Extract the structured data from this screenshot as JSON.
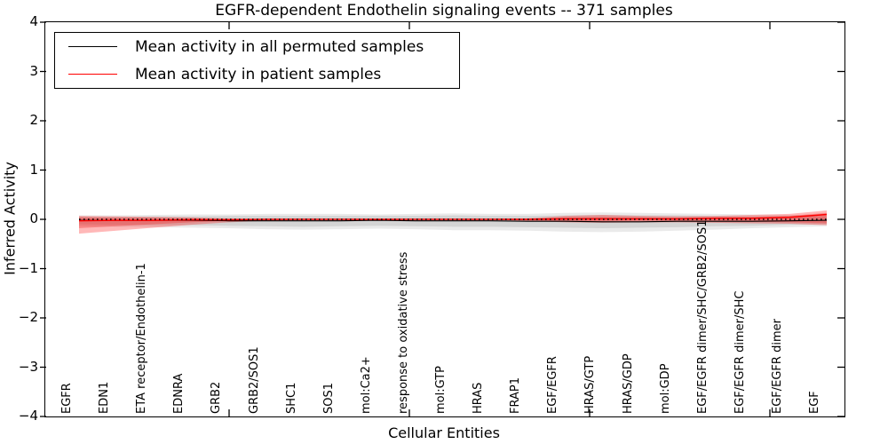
{
  "title": "EGFR-dependent Endothelin signaling events -- 371 samples",
  "xlabel": "Cellular Entities",
  "ylabel": "Inferred Activity",
  "legend": [
    {
      "label": "Mean activity in all permuted samples",
      "color": "#000000"
    },
    {
      "label": "Mean activity in patient samples",
      "color": "#ff0000"
    }
  ],
  "chart_data": {
    "type": "line",
    "title": "EGFR-dependent Endothelin signaling events -- 371 samples",
    "xlabel": "Cellular Entities",
    "ylabel": "Inferred Activity",
    "ylim": [
      -4,
      4
    ],
    "yticks": [
      4,
      3,
      2,
      1,
      0,
      -1,
      -2,
      -3,
      -4
    ],
    "grid": false,
    "legend_position": "upper-left",
    "categories": [
      "EGFR",
      "EDN1",
      "ETA receptor/Endothelin-1",
      "EDNRA",
      "GRB2",
      "GRB2/SOS1",
      "SHC1",
      "SOS1",
      "mol:Ca2+",
      "response to oxidative stress",
      "mol:GTP",
      "HRAS",
      "FRAP1",
      "EGF/EGFR",
      "HRAS/GTP",
      "HRAS/GDP",
      "mol:GDP",
      "EGF/EGFR dimer/SHC/GRB2/SOS1",
      "EGF/EGFR dimer/SHC",
      "EGF/EGFR dimer",
      "EGF"
    ],
    "series": [
      {
        "name": "Mean activity in all permuted samples",
        "color": "#000000",
        "style": "solid",
        "width": 1.1,
        "values": [
          -0.02,
          -0.02,
          -0.02,
          -0.02,
          -0.03,
          -0.03,
          -0.03,
          -0.03,
          -0.02,
          -0.03,
          -0.03,
          -0.03,
          -0.04,
          -0.04,
          -0.05,
          -0.05,
          -0.04,
          -0.04,
          -0.04,
          -0.03,
          -0.02
        ]
      },
      {
        "name": "Mean activity in patient samples",
        "color": "#ff0000",
        "style": "solid",
        "width": 1.5,
        "values": [
          -0.03,
          -0.02,
          -0.02,
          -0.01,
          -0.01,
          0,
          0,
          0,
          0,
          0,
          0,
          0,
          0,
          0.01,
          0.01,
          0.01,
          0.01,
          0.02,
          0.02,
          0.04,
          0.1
        ]
      },
      {
        "name": "zero-reference-dotted",
        "color": "#000000",
        "style": "dotted",
        "width": 1.6,
        "values": [
          0,
          0,
          0,
          0,
          0,
          0,
          0,
          0,
          0,
          0,
          0,
          0,
          0,
          0,
          0,
          0,
          0,
          0,
          0,
          0,
          0
        ]
      }
    ],
    "bands": [
      {
        "name": "permuted-std-outer",
        "color": "#888888",
        "opacity": 0.18,
        "upper": [
          0.08,
          0.08,
          0.09,
          0.1,
          0.1,
          0.11,
          0.11,
          0.11,
          0.1,
          0.11,
          0.12,
          0.11,
          0.11,
          0.13,
          0.14,
          0.13,
          0.12,
          0.11,
          0.1,
          0.09,
          0.09
        ],
        "lower": [
          -0.14,
          -0.15,
          -0.16,
          -0.17,
          -0.18,
          -0.2,
          -0.21,
          -0.2,
          -0.19,
          -0.2,
          -0.22,
          -0.22,
          -0.23,
          -0.25,
          -0.26,
          -0.25,
          -0.23,
          -0.21,
          -0.18,
          -0.16,
          -0.14
        ]
      },
      {
        "name": "permuted-std-inner",
        "color": "#888888",
        "opacity": 0.22,
        "upper": [
          0.05,
          0.05,
          0.06,
          0.06,
          0.07,
          0.07,
          0.07,
          0.07,
          0.07,
          0.07,
          0.08,
          0.07,
          0.07,
          0.08,
          0.09,
          0.08,
          0.08,
          0.07,
          0.06,
          0.06,
          0.06
        ],
        "lower": [
          -0.1,
          -0.11,
          -0.12,
          -0.12,
          -0.13,
          -0.14,
          -0.15,
          -0.14,
          -0.13,
          -0.14,
          -0.15,
          -0.15,
          -0.16,
          -0.17,
          -0.18,
          -0.17,
          -0.16,
          -0.14,
          -0.13,
          -0.11,
          -0.1
        ]
      },
      {
        "name": "patient-std-outer",
        "color": "#ff0000",
        "opacity": 0.28,
        "upper": [
          0.07,
          0.06,
          0.05,
          0.04,
          0.02,
          0.01,
          0,
          0,
          0,
          0,
          0,
          0.01,
          0.02,
          0.07,
          0.09,
          0.07,
          0.06,
          0.07,
          0.09,
          0.11,
          0.18
        ],
        "lower": [
          -0.29,
          -0.23,
          -0.17,
          -0.11,
          -0.06,
          -0.03,
          -0.01,
          0,
          0,
          0,
          0,
          -0.01,
          -0.03,
          -0.06,
          -0.07,
          -0.06,
          -0.06,
          -0.07,
          -0.08,
          -0.09,
          -0.12
        ]
      },
      {
        "name": "patient-std-inner",
        "color": "#ee2222",
        "opacity": 0.32,
        "upper": [
          0.04,
          0.03,
          0.03,
          0.02,
          0.01,
          0,
          0,
          0,
          0,
          0,
          0,
          0,
          0.01,
          0.04,
          0.05,
          0.04,
          0.03,
          0.04,
          0.05,
          0.07,
          0.13
        ],
        "lower": [
          -0.18,
          -0.14,
          -0.1,
          -0.06,
          -0.03,
          -0.01,
          0,
          0,
          0,
          0,
          0,
          0,
          -0.02,
          -0.03,
          -0.04,
          -0.03,
          -0.03,
          -0.04,
          -0.05,
          -0.06,
          -0.08
        ]
      }
    ]
  }
}
